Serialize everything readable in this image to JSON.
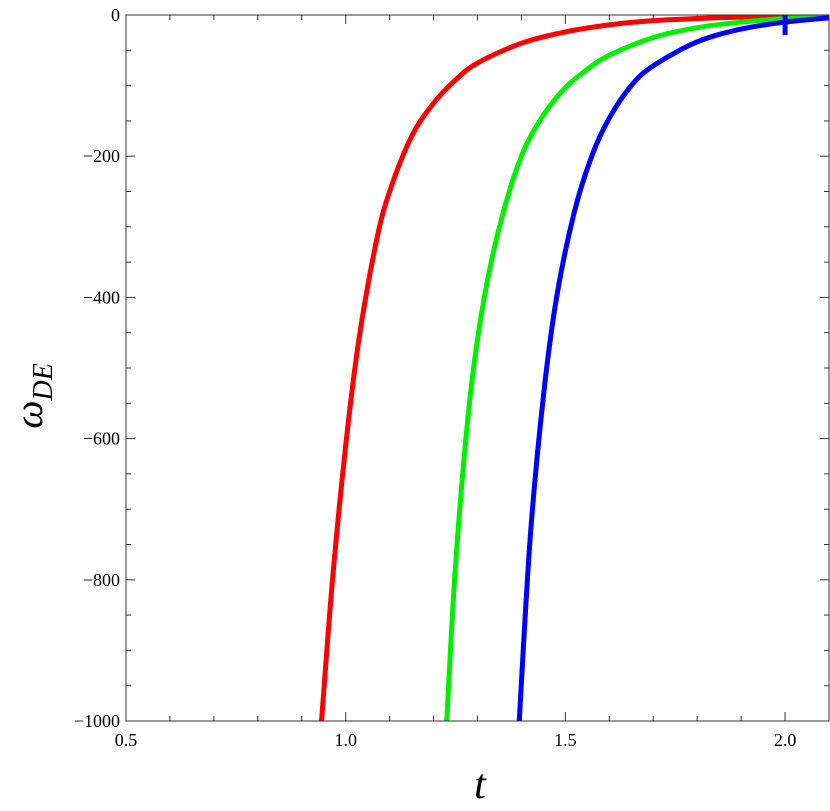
{
  "chart_data": {
    "type": "line",
    "title": "",
    "xlabel": "t",
    "ylabel": "ω",
    "ylabel_sub": "DE",
    "xlim": [
      0.5,
      2.1
    ],
    "ylim": [
      -1000,
      0
    ],
    "xticks": [
      0.5,
      1.0,
      1.5,
      2.0
    ],
    "xtick_labels": [
      "0.5",
      "1.0",
      "1.5",
      "2.0"
    ],
    "yticks": [
      -1000,
      -800,
      -600,
      -400,
      -200,
      0
    ],
    "ytick_labels": [
      "−1000",
      "−800",
      "−600",
      "−400",
      "−200",
      "0"
    ],
    "grid": false,
    "legend": "none",
    "series": [
      {
        "color": "#ff0000",
        "x": [
          0.945,
          0.97,
          1.0,
          1.03,
          1.07,
          1.1,
          1.15,
          1.2,
          1.25,
          1.3,
          1.4,
          1.5,
          1.6,
          1.7,
          1.8,
          1.9,
          2.0,
          2.1
        ],
        "y": [
          -1000,
          -800,
          -610,
          -460,
          -320,
          -250,
          -172,
          -125,
          -92,
          -68,
          -40,
          -24,
          -14,
          -8,
          -5,
          -3,
          -2,
          -1
        ]
      },
      {
        "color": "#00ee00",
        "x": [
          1.23,
          1.25,
          1.28,
          1.31,
          1.35,
          1.4,
          1.45,
          1.5,
          1.55,
          1.6,
          1.7,
          1.8,
          1.9,
          2.0,
          2.1
        ],
        "y": [
          -1000,
          -780,
          -560,
          -420,
          -300,
          -200,
          -142,
          -103,
          -77,
          -57,
          -32,
          -18,
          -10,
          -5,
          -2
        ]
      },
      {
        "color": "#0000ff",
        "x": [
          1.395,
          1.42,
          1.45,
          1.48,
          1.52,
          1.56,
          1.6,
          1.65,
          1.7,
          1.8,
          1.9,
          2.0,
          2.1
        ],
        "y": [
          -1000,
          -740,
          -540,
          -400,
          -280,
          -200,
          -146,
          -100,
          -72,
          -38,
          -20,
          -10,
          -4
        ]
      }
    ],
    "annotations": [
      {
        "x": 2.0,
        "y": 0,
        "color": "#0000ff"
      }
    ]
  }
}
